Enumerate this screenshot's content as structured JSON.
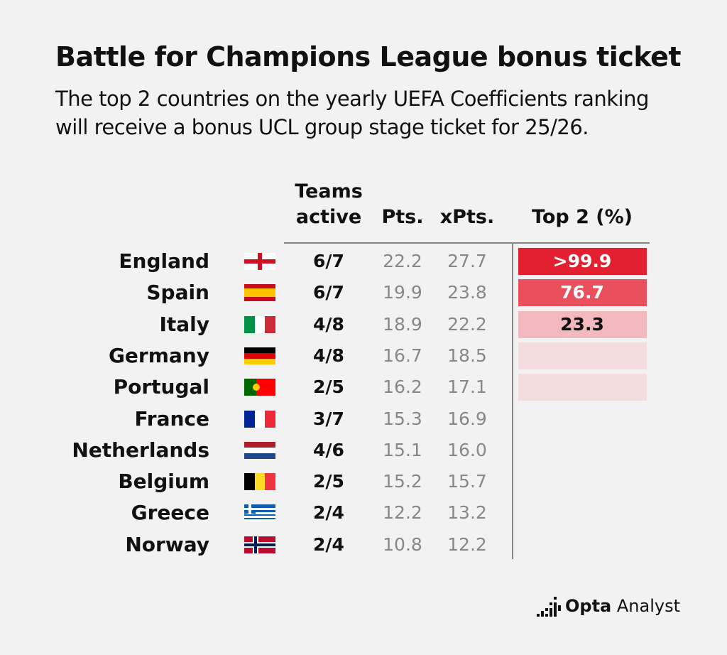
{
  "header": {
    "title": "Battle for Champions League bonus ticket",
    "subtitle_lines": [
      "The top 2 countries on the yearly UEFA Coefficients ranking",
      "will receive a bonus UCL group stage ticket for 25/26."
    ]
  },
  "table": {
    "columns": [
      [
        "Teams",
        "active"
      ],
      "Pts.",
      "xPts.",
      "Top 2 (%)"
    ],
    "rows": [
      [
        "England",
        "6/7",
        "22.2",
        "27.7",
        ">99.9"
      ],
      [
        "Spain",
        "6/7",
        "19.9",
        "23.8",
        "76.7"
      ],
      [
        "Italy",
        "4/8",
        "18.9",
        "22.2",
        "23.3"
      ],
      [
        "Germany",
        "4/8",
        "16.7",
        "18.5",
        null
      ],
      [
        "Portugal",
        "2/5",
        "16.2",
        "17.1",
        null
      ],
      [
        "France",
        "3/7",
        "15.3",
        "16.9",
        null
      ],
      [
        "Netherlands",
        "4/6",
        "15.1",
        "16.0",
        null
      ],
      [
        "Belgium",
        "2/5",
        "15.2",
        "15.7",
        null
      ],
      [
        "Greece",
        "2/4",
        "12.2",
        "13.2",
        null
      ],
      [
        "Norway",
        "2/4",
        "10.8",
        "12.2",
        null
      ]
    ]
  },
  "footer": {
    "brand_bold": "Opta",
    "brand_light": "Analyst"
  }
}
